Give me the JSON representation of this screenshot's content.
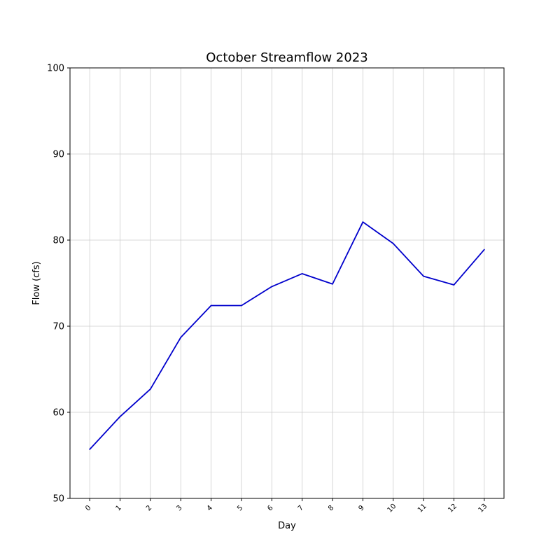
{
  "chart_data": {
    "type": "line",
    "title": "October Streamflow 2023",
    "xlabel": "Day",
    "ylabel": "Flow (cfs)",
    "x": [
      0,
      1,
      2,
      3,
      4,
      5,
      6,
      7,
      8,
      9,
      10,
      11,
      12,
      13
    ],
    "series": [
      {
        "values": [
          55.7,
          59.5,
          62.7,
          68.7,
          72.4,
          72.4,
          74.6,
          76.1,
          74.9,
          82.1,
          79.6,
          75.8,
          74.8,
          78.9
        ],
        "color": "#0000cc"
      }
    ],
    "xlim": [
      -0.65,
      13.65
    ],
    "ylim": [
      50,
      100
    ],
    "yticks": [
      50,
      60,
      70,
      80,
      90,
      100
    ],
    "grid": true
  }
}
